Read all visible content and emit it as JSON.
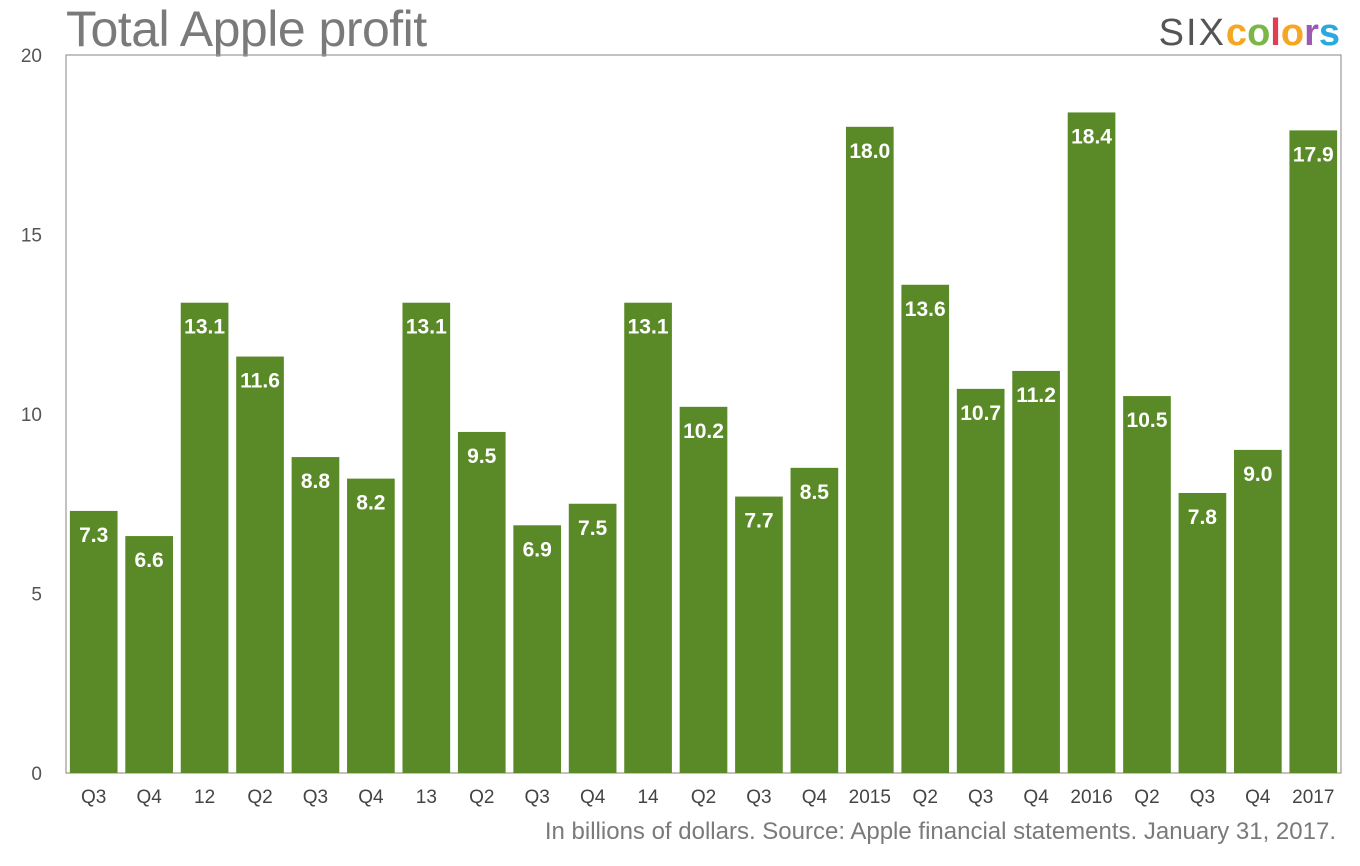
{
  "brand": {
    "six": "SIX",
    "letters": [
      "c",
      "o",
      "l",
      "o",
      "r",
      "s"
    ],
    "letter_colors": [
      "#f5a623",
      "#7ab648",
      "#e03e52",
      "#f5a623",
      "#9b59b6",
      "#29a9e0"
    ]
  },
  "footer": {
    "note": "In billions of dollars. Source: Apple financial statements. January 31, 2017."
  },
  "colors": {
    "bar": "#5a8a27",
    "axis": "#9a9a9a",
    "bar_label": "#ffffff"
  },
  "chart_data": {
    "type": "bar",
    "title": "Total Apple profit",
    "xlabel": "",
    "ylabel": "",
    "ylim": [
      0,
      20
    ],
    "yticks": [
      0,
      5,
      10,
      15,
      20
    ],
    "grid": false,
    "categories": [
      "Q3",
      "Q4",
      "12",
      "Q2",
      "Q3",
      "Q4",
      "13",
      "Q2",
      "Q3",
      "Q4",
      "14",
      "Q2",
      "Q3",
      "Q4",
      "2015",
      "Q2",
      "Q3",
      "Q4",
      "2016",
      "Q2",
      "Q3",
      "Q4",
      "2017"
    ],
    "values": [
      7.3,
      6.6,
      13.1,
      11.6,
      8.8,
      8.2,
      13.1,
      9.5,
      6.9,
      7.5,
      13.1,
      10.2,
      7.7,
      8.5,
      18.0,
      13.6,
      10.7,
      11.2,
      18.4,
      10.5,
      7.8,
      9.0,
      17.9
    ],
    "value_labels": [
      "7.3",
      "6.6",
      "13.1",
      "11.6",
      "8.8",
      "8.2",
      "13.1",
      "9.5",
      "6.9",
      "7.5",
      "13.1",
      "10.2",
      "7.7",
      "8.5",
      "18.0",
      "13.6",
      "10.7",
      "11.2",
      "18.4",
      "10.5",
      "7.8",
      "9.0",
      "17.9"
    ]
  }
}
